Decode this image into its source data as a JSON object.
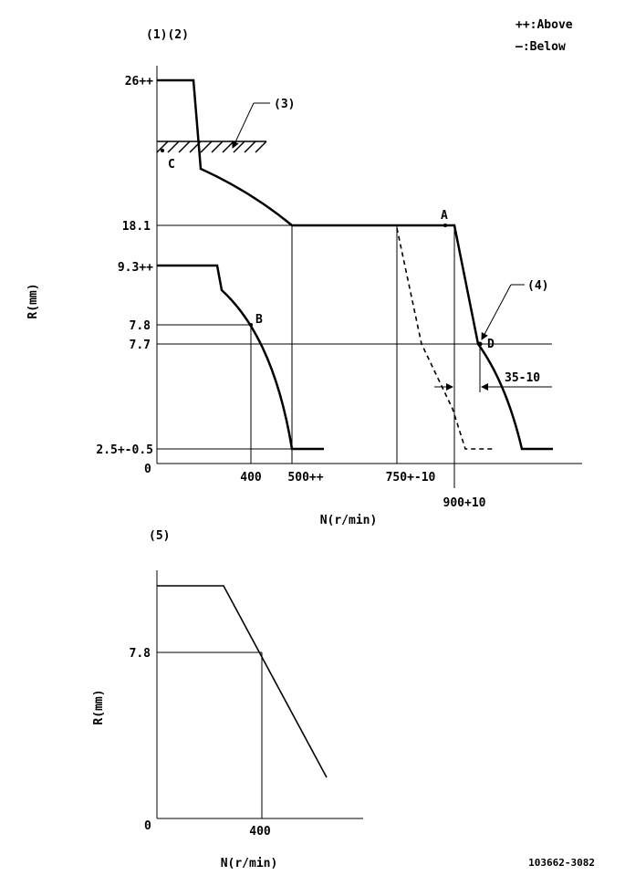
{
  "legend": {
    "above": "++:Above",
    "below": "—:Below"
  },
  "top_chart": {
    "header": "(1)(2)",
    "ylabel": "R(mm)",
    "xlabel": "N(r/min)",
    "origin": "0",
    "y_ticks": [
      "26++",
      "18.1",
      "9.3++",
      "7.8",
      "7.7",
      "2.5+-0.5"
    ],
    "x_ticks": [
      "400",
      "500++",
      "750+-10",
      "900+10"
    ],
    "callouts": [
      "(3)",
      "(4)"
    ],
    "points": [
      "A",
      "B",
      "C",
      "D"
    ],
    "offset_label": "35-10"
  },
  "bottom_chart": {
    "header": "(5)",
    "ylabel": "R(mm)",
    "xlabel": "N(r/min)",
    "origin": "0",
    "y_tick": "7.8",
    "x_tick": "400"
  },
  "drawing_number": "103662-3082"
}
